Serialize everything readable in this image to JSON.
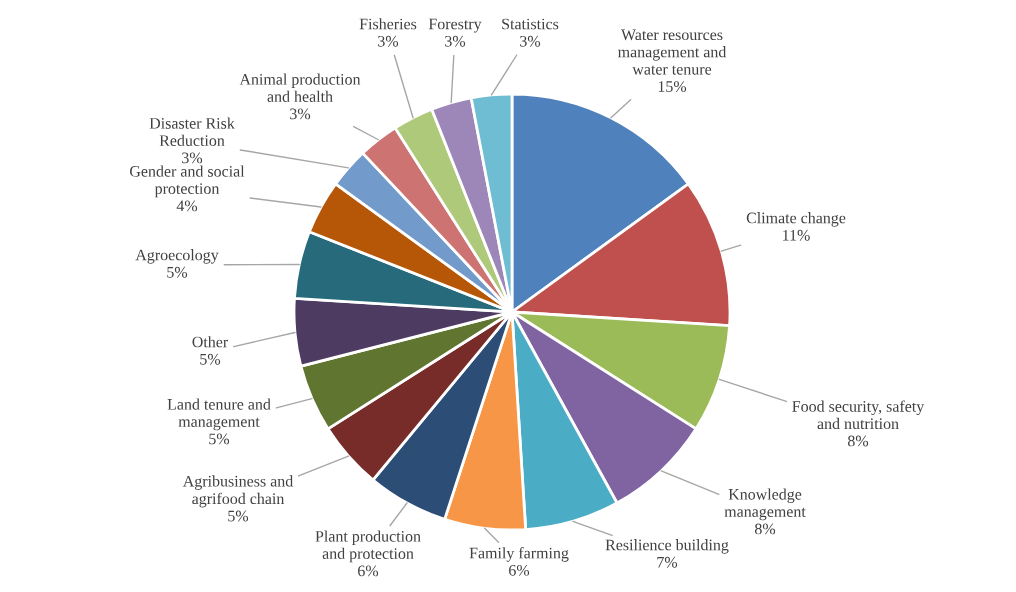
{
  "chart_data": {
    "type": "pie",
    "categories": [
      "Water resources\nmanagement and\nwater tenure",
      "Climate change",
      "Food security, safety\nand nutrition",
      "Knowledge\nmanagement",
      "Resilience building",
      "Family farming",
      "Plant production\nand protection",
      "Agribusiness and\nagrifood chain",
      "Land tenure and\nmanagement",
      "Other",
      "Agroecology",
      "Gender and social\nprotection",
      "Disaster Risk\nReduction",
      "Animal production\nand health",
      "Fisheries",
      "Forestry",
      "Statistics"
    ],
    "values": [
      15,
      11,
      8,
      8,
      7,
      6,
      6,
      5,
      5,
      5,
      5,
      4,
      3,
      3,
      3,
      3,
      3
    ],
    "value_labels": [
      "15%",
      "11%",
      "8%",
      "8%",
      "7%",
      "6%",
      "6%",
      "5%",
      "5%",
      "5%",
      "5%",
      "4%",
      "3%",
      "3%",
      "3%",
      "3%",
      "3%"
    ],
    "colors": [
      "#4f81bd",
      "#c0504d",
      "#9bbb59",
      "#8064a2",
      "#4bacc6",
      "#f79646",
      "#2c4d75",
      "#772c2a",
      "#5f7530",
      "#4d3b62",
      "#276a7c",
      "#b65708",
      "#729aca",
      "#cd7371",
      "#afc97a",
      "#9c87b8",
      "#6fbdd2"
    ],
    "legend": false
  }
}
